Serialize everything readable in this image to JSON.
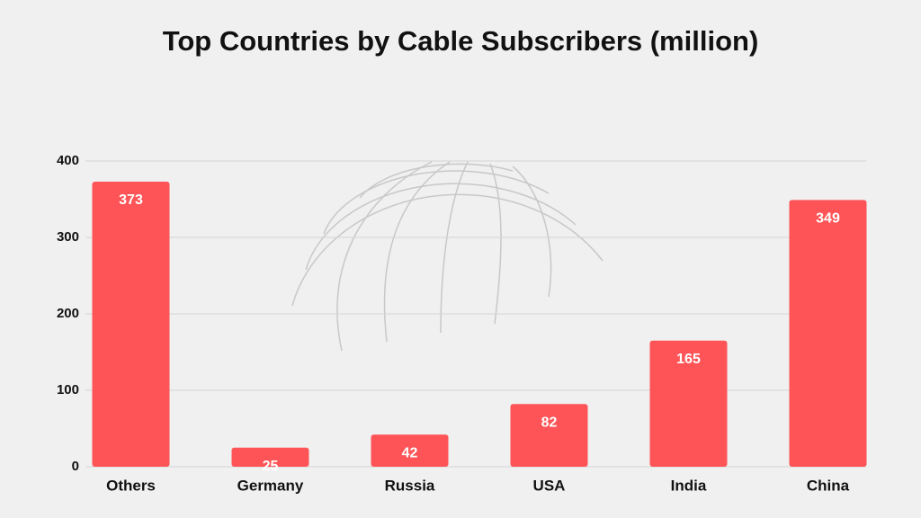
{
  "chart_data": {
    "type": "bar",
    "title": "Top Countries by Cable Subscribers (million)",
    "categories": [
      "Others",
      "Germany",
      "Russia",
      "USA",
      "India",
      "China"
    ],
    "values": [
      373,
      25,
      42,
      82,
      165,
      349
    ],
    "color": "#fe5457",
    "ylim": [
      0,
      400
    ],
    "yticks": [
      0,
      100,
      200,
      300,
      400
    ],
    "grid": true
  }
}
